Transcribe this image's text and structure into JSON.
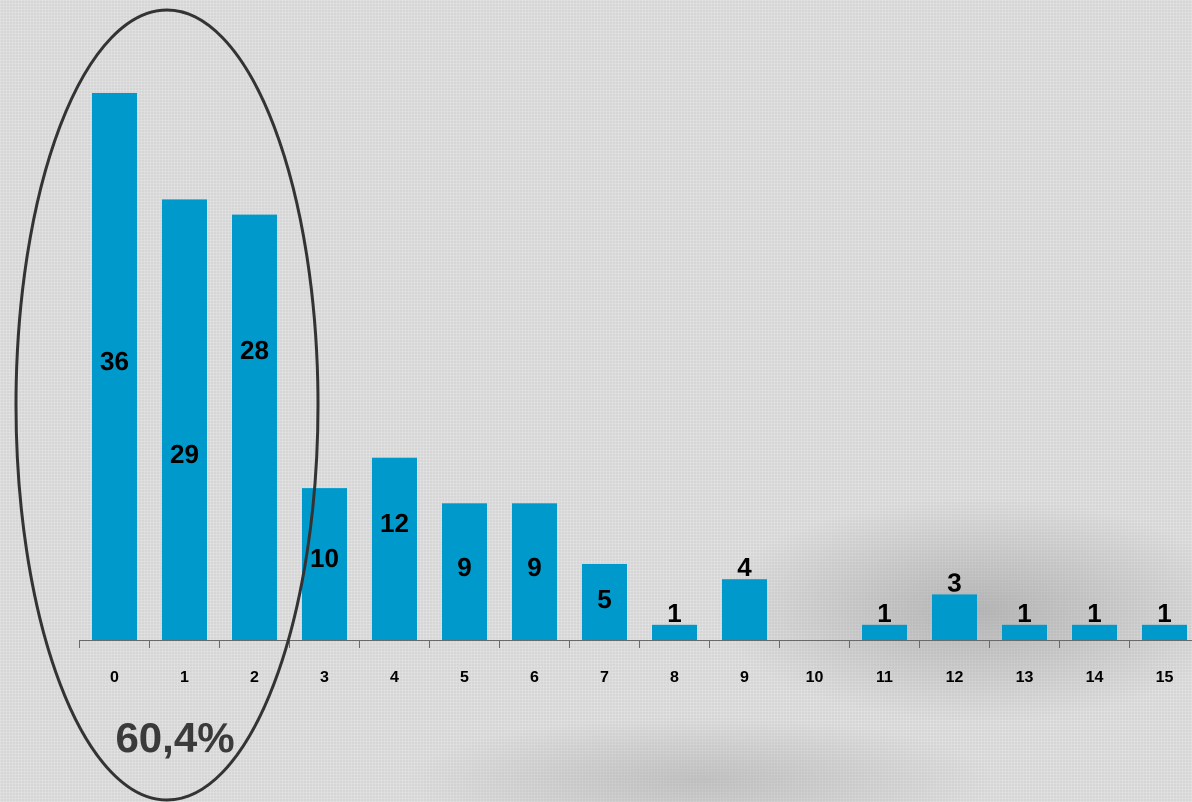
{
  "chart_data": {
    "type": "bar",
    "categories": [
      "0",
      "1",
      "2",
      "3",
      "4",
      "5",
      "6",
      "7",
      "8",
      "9",
      "10",
      "11",
      "12",
      "13",
      "14",
      "15"
    ],
    "values": [
      36,
      29,
      28,
      10,
      12,
      9,
      9,
      5,
      1,
      4,
      0,
      1,
      3,
      1,
      1,
      1
    ],
    "data_labels": [
      "36",
      "29",
      "28",
      "10",
      "12",
      "9",
      "9",
      "5",
      "1",
      "4",
      "",
      "1",
      "3",
      "1",
      "1",
      "1"
    ],
    "title": "",
    "xlabel": "",
    "ylabel": "",
    "ylim": [
      0,
      36
    ],
    "grid": false,
    "legend": "none",
    "highlight_categories": [
      "0",
      "1",
      "2"
    ],
    "annotation": "60,4%"
  },
  "colors": {
    "bar": "#0099cc",
    "ellipse": "#333333",
    "axis": "#6a6a6a"
  }
}
